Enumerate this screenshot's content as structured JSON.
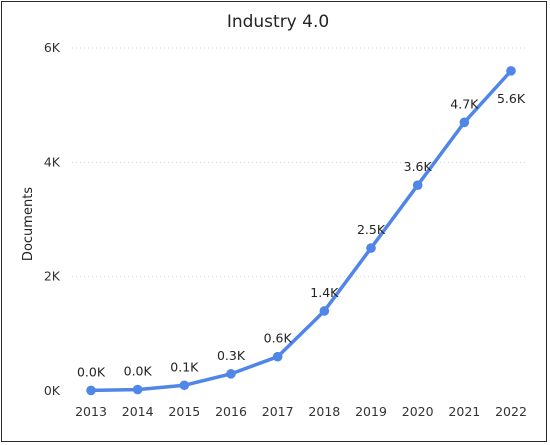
{
  "chart_data": {
    "type": "line",
    "title": "Industry 4.0",
    "xlabel": "",
    "ylabel": "Documents",
    "categories": [
      "2013",
      "2014",
      "2015",
      "2016",
      "2017",
      "2018",
      "2019",
      "2020",
      "2021",
      "2022"
    ],
    "values": [
      10,
      25,
      100,
      300,
      600,
      1400,
      2500,
      3600,
      4700,
      5600
    ],
    "data_labels": [
      "0.0K",
      "0.0K",
      "0.1K",
      "0.3K",
      "0.6K",
      "1.4K",
      "2.5K",
      "3.6K",
      "4.7K",
      "5.6K"
    ],
    "y_ticks": [
      0,
      2000,
      4000,
      6000
    ],
    "y_tick_labels": [
      "0K",
      "2K",
      "4K",
      "6K"
    ],
    "ylim": [
      0,
      6000
    ],
    "grid": true,
    "legend": "none",
    "colors": {
      "series": "#4f86e8",
      "text": "#252423",
      "grid": "#d4d4d4"
    }
  }
}
